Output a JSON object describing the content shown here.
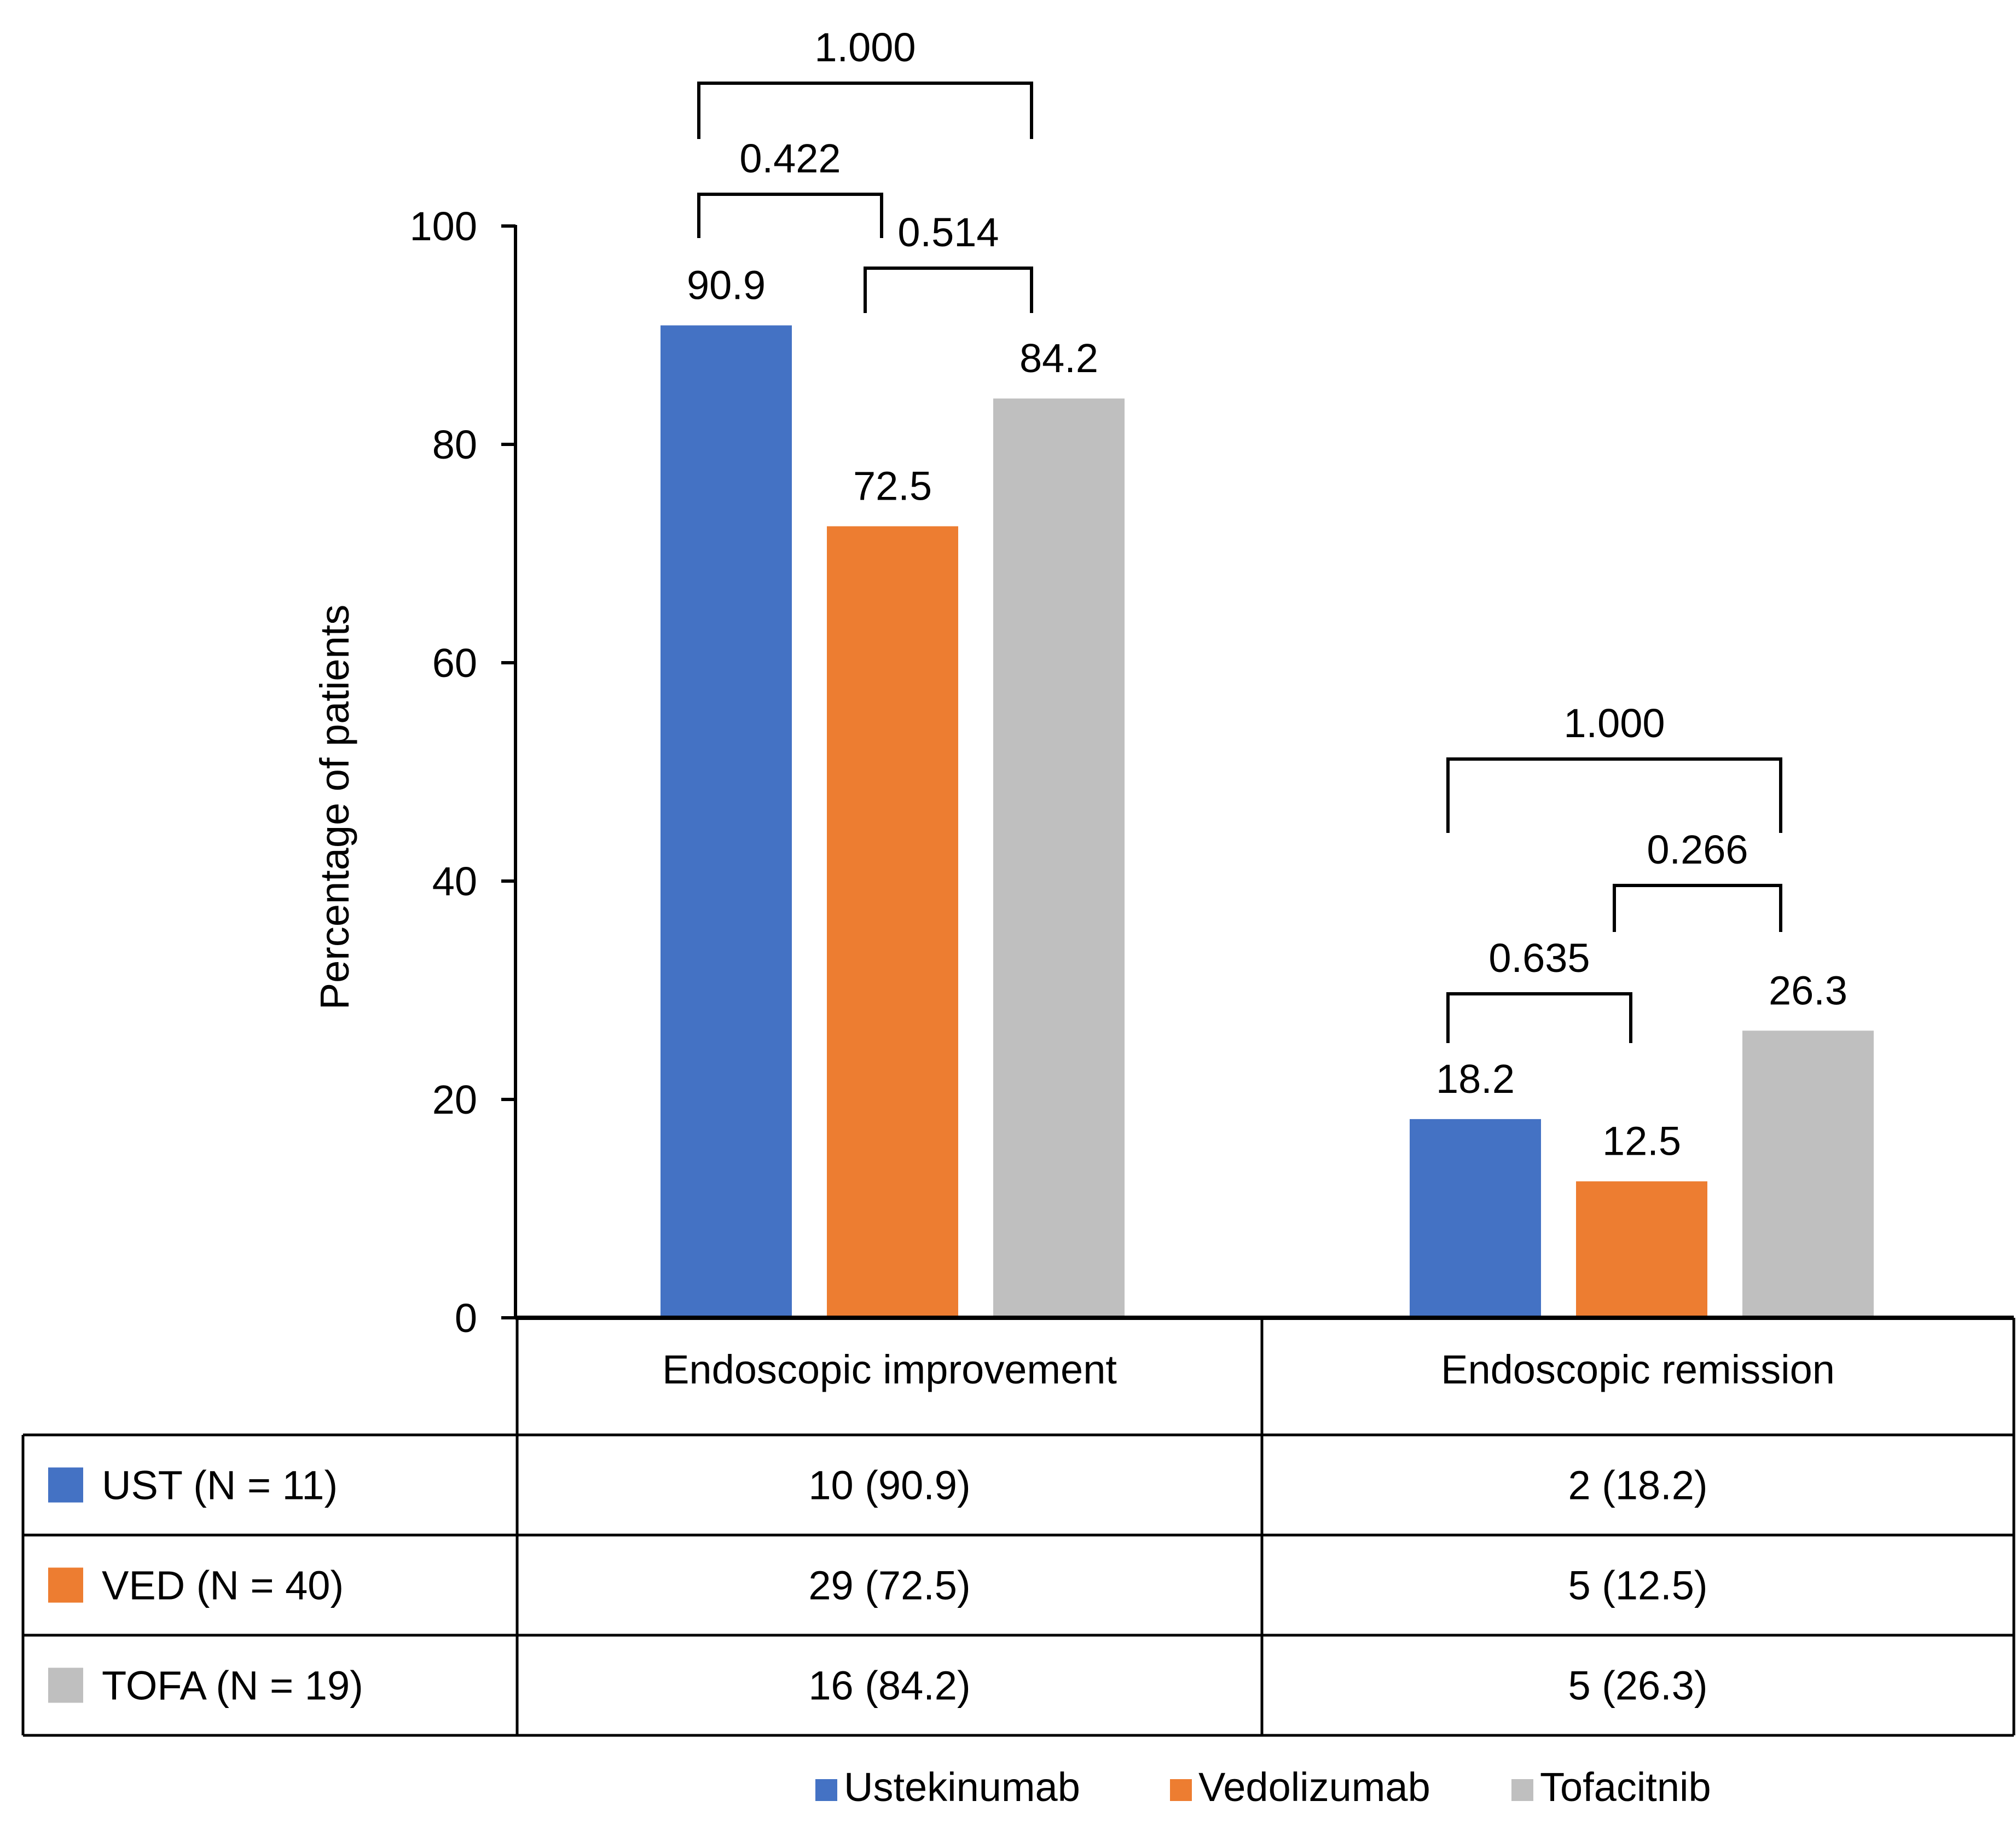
{
  "chart_data": {
    "type": "bar",
    "ylabel": "Percentage of patients",
    "ylim": [
      0,
      100
    ],
    "yticks": [
      0,
      20,
      40,
      60,
      80,
      100
    ],
    "categories": [
      "Endoscopic improvement",
      "Endoscopic remission"
    ],
    "series": [
      {
        "name": "Ustekinumab",
        "short": "UST (N = 11)",
        "color": "#4472C4",
        "values": [
          90.9,
          18.2
        ],
        "labels": [
          "90.9",
          "18.2"
        ],
        "table": [
          "10 (90.9)",
          "2 (18.2)"
        ]
      },
      {
        "name": "Vedolizumab",
        "short": "VED (N = 40)",
        "color": "#ED7D31",
        "values": [
          72.5,
          12.5
        ],
        "labels": [
          "72.5",
          "12.5"
        ],
        "table": [
          "29 (72.5)",
          "5 (12.5)"
        ]
      },
      {
        "name": "Tofacitnib",
        "short": "TOFA (N = 19)",
        "color": "#BFBFBF",
        "values": [
          84.2,
          26.3
        ],
        "labels": [
          "84.2",
          "26.3"
        ],
        "table": [
          "16 (84.2)",
          "5 (26.3)"
        ]
      }
    ],
    "comparisons": [
      {
        "category": 0,
        "from": 0,
        "to": 2,
        "label": "1.000"
      },
      {
        "category": 0,
        "from": 0,
        "to": 1,
        "label": "0.422"
      },
      {
        "category": 0,
        "from": 1,
        "to": 2,
        "label": "0.514"
      },
      {
        "category": 1,
        "from": 0,
        "to": 2,
        "label": "1.000"
      },
      {
        "category": 1,
        "from": 1,
        "to": 2,
        "label": "0.266"
      },
      {
        "category": 1,
        "from": 0,
        "to": 1,
        "label": "0.635"
      }
    ],
    "legend_position": "bottom"
  }
}
